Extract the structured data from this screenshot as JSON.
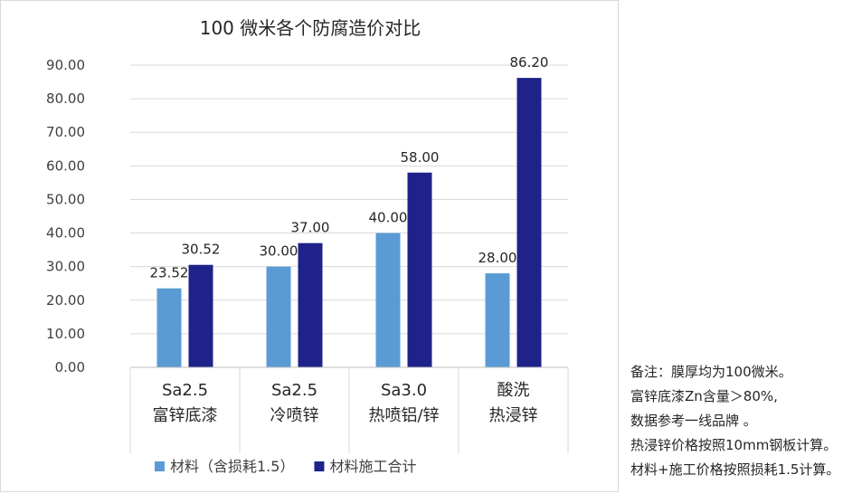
{
  "chart_data": {
    "type": "bar",
    "title": "100 微米各个防腐造价对比",
    "categories": [
      [
        "Sa2.5",
        "富锌底漆"
      ],
      [
        "Sa2.5",
        "冷喷锌"
      ],
      [
        "Sa3.0",
        "热喷铝/锌"
      ],
      [
        "酸洗",
        "热浸锌"
      ]
    ],
    "series": [
      {
        "name": "材料（含损耗1.5）",
        "color": "#5b9bd5",
        "values": [
          23.52,
          30.0,
          40.0,
          28.0
        ]
      },
      {
        "name": "材料施工合计",
        "color": "#1f2289",
        "values": [
          30.52,
          37.0,
          58.0,
          86.2
        ]
      }
    ],
    "ylim": [
      0,
      90
    ],
    "yticks": [
      "0.00",
      "10.00",
      "20.00",
      "30.00",
      "40.00",
      "50.00",
      "60.00",
      "70.00",
      "80.00",
      "90.00"
    ],
    "grid": true,
    "legend": "bottom"
  },
  "notes": [
    "备注：膜厚均为100微米。",
    "富锌底漆Zn含量＞80%,",
    "数据参考一线品牌 。",
    "热浸锌价格按照10mm钢板计算。",
    "材料+施工价格按照损耗1.5计算。"
  ]
}
